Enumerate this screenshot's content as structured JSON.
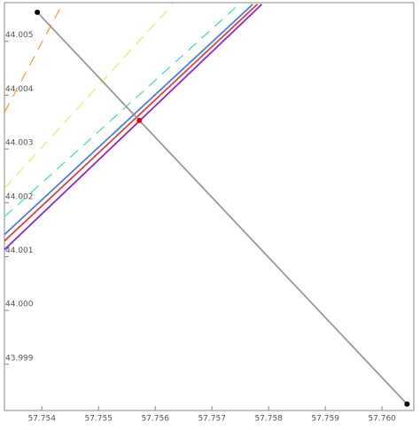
{
  "chart_data": {
    "type": "line",
    "xlim": [
      57.75334,
      57.76056
    ],
    "ylim": [
      43.99814,
      44.00572
    ],
    "xticks": [
      57.754,
      57.755,
      57.756,
      57.757,
      57.758,
      57.759,
      {
        "value": 57.76,
        "label": "57.760"
      }
    ],
    "yticks": [
      43.999,
      {
        "value": 44,
        "label": "44.000"
      },
      44.001,
      44.002,
      44.003,
      44.004,
      44.005
    ],
    "series": [
      {
        "color": "#ff9a2e",
        "dashed": true,
        "x": [
          57.75334,
          57.75436
        ],
        "values": [
          44.00368,
          44.00569
        ]
      },
      {
        "color": "#e8e860",
        "dashed": true,
        "x": [
          57.75334,
          57.75631
        ],
        "values": [
          44.00227,
          44.00569
        ]
      },
      {
        "color": "#3ee0a0",
        "dashed": true,
        "x": [
          57.75334,
          57.75748
        ],
        "values": [
          44.00174,
          44.00569
        ]
      },
      {
        "color": "#4a7fe0",
        "dashed": false,
        "x": [
          57.75334,
          57.75772
        ],
        "values": [
          44.00141,
          44.00569
        ]
      },
      {
        "color": "#e04040",
        "dashed": false,
        "x": [
          57.75334,
          57.7578
        ],
        "values": [
          44.00129,
          44.00569
        ]
      },
      {
        "color": "#8a2bd0",
        "dashed": false,
        "x": [
          57.75334,
          57.75788
        ],
        "values": [
          44.00113,
          44.00569
        ]
      },
      {
        "color": "#999999",
        "dashed": false,
        "x": [
          57.75392,
          57.76044
        ],
        "values": [
          44.00554,
          43.99826
        ]
      }
    ],
    "points": {
      "x": [
        57.75392,
        57.76044,
        57.75572
      ],
      "values": [
        44.00554,
        43.99826,
        44.00353
      ],
      "colors": [
        "#000000",
        "#000000",
        "#e00000"
      ]
    }
  }
}
